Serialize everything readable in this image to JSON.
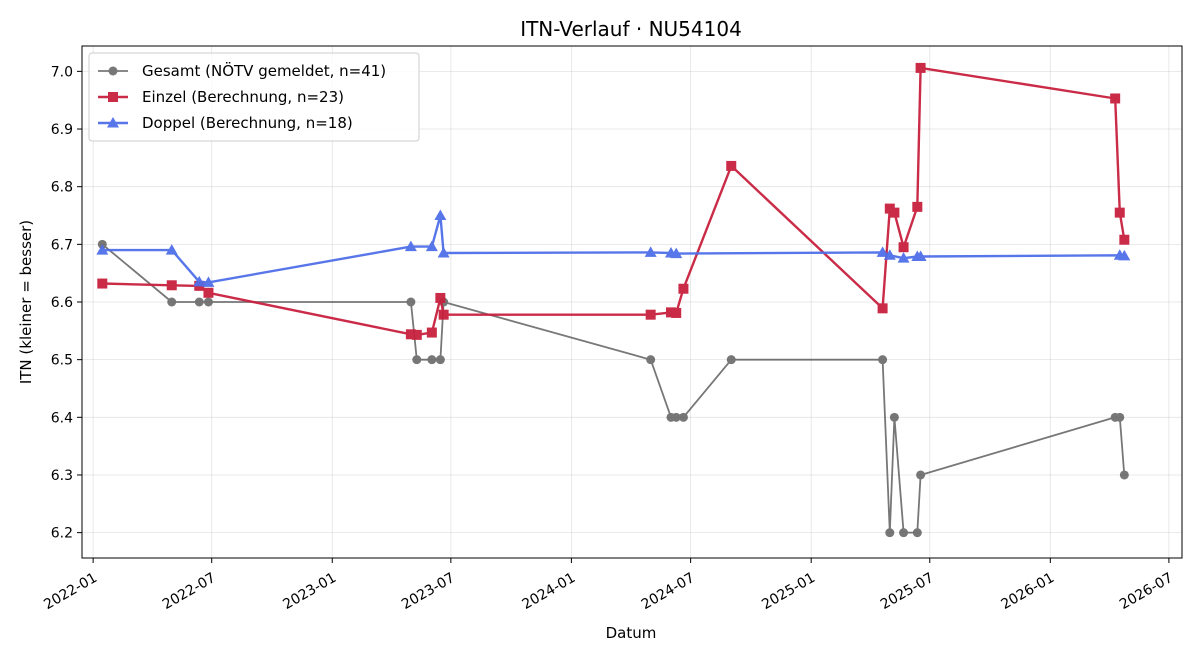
{
  "chart_data": {
    "type": "line",
    "title": "ITN-Verlauf · NU54104",
    "xlabel": "Datum",
    "ylabel": "ITN  (kleiner = besser)",
    "x_axis_type": "date",
    "xlim": [
      "2021-12-15",
      "2026-07-21"
    ],
    "ylim": [
      6.156,
      7.044
    ],
    "grid": true,
    "legend_position": "top-left",
    "x_ticks": [
      "2022-01-01",
      "2022-07-01",
      "2023-01-01",
      "2023-07-01",
      "2024-01-01",
      "2024-07-01",
      "2025-01-01",
      "2025-07-01",
      "2026-01-01",
      "2026-07-01"
    ],
    "x_tick_labels": [
      "2022-01",
      "2022-07",
      "2023-01",
      "2023-07",
      "2024-01",
      "2024-07",
      "2025-01",
      "2025-07",
      "2026-01",
      "2026-07"
    ],
    "y_ticks": [
      6.2,
      6.3,
      6.4,
      6.5,
      6.6,
      6.7,
      6.8,
      6.9,
      7.0
    ],
    "y_tick_labels": [
      "6.2",
      "6.3",
      "6.4",
      "6.5",
      "6.6",
      "6.7",
      "6.8",
      "6.9",
      "7.0"
    ],
    "series": [
      {
        "name": "Gesamt (NÖTV gemeldet, n=41)",
        "color": "#444444",
        "marker": "circle",
        "points": [
          [
            "2022-01-15",
            6.7
          ],
          [
            "2022-05-01",
            6.6
          ],
          [
            "2022-06-12",
            6.6
          ],
          [
            "2022-06-26",
            6.6
          ],
          [
            "2023-05-01",
            6.6
          ],
          [
            "2023-05-10",
            6.5
          ],
          [
            "2023-06-02",
            6.5
          ],
          [
            "2023-06-15",
            6.5
          ],
          [
            "2023-06-20",
            6.6
          ],
          [
            "2024-05-01",
            6.5
          ],
          [
            "2024-06-01",
            6.4
          ],
          [
            "2024-06-09",
            6.4
          ],
          [
            "2024-06-20",
            6.4
          ],
          [
            "2024-09-01",
            6.5
          ],
          [
            "2025-04-20",
            6.5
          ],
          [
            "2025-05-01",
            6.2
          ],
          [
            "2025-05-08",
            6.4
          ],
          [
            "2025-05-22",
            6.2
          ],
          [
            "2025-06-12",
            6.2
          ],
          [
            "2025-06-17",
            6.3
          ],
          [
            "2026-04-10",
            6.4
          ],
          [
            "2026-04-17",
            6.4
          ],
          [
            "2026-04-24",
            6.3
          ]
        ]
      },
      {
        "name": "Einzel (Berechnung, n=23)",
        "color": "#c8203e",
        "marker": "square",
        "points": [
          [
            "2022-01-15",
            6.632
          ],
          [
            "2022-05-01",
            6.629
          ],
          [
            "2022-06-12",
            6.628
          ],
          [
            "2022-06-26",
            6.616
          ],
          [
            "2023-05-01",
            6.544
          ],
          [
            "2023-05-10",
            6.543
          ],
          [
            "2023-06-02",
            6.547
          ],
          [
            "2023-06-15",
            6.607
          ],
          [
            "2023-06-20",
            6.578
          ],
          [
            "2024-05-01",
            6.578
          ],
          [
            "2024-06-01",
            6.582
          ],
          [
            "2024-06-09",
            6.581
          ],
          [
            "2024-06-20",
            6.623
          ],
          [
            "2024-09-01",
            6.836
          ],
          [
            "2025-04-20",
            6.589
          ],
          [
            "2025-05-01",
            6.762
          ],
          [
            "2025-05-08",
            6.755
          ],
          [
            "2025-05-22",
            6.695
          ],
          [
            "2025-06-12",
            6.765
          ],
          [
            "2025-06-17",
            7.006
          ],
          [
            "2026-04-10",
            6.953
          ],
          [
            "2026-04-17",
            6.755
          ],
          [
            "2026-04-24",
            6.708
          ]
        ]
      },
      {
        "name": "Doppel (Berechnung, n=18)",
        "color": "#4f6fe8",
        "marker": "triangle",
        "points": [
          [
            "2022-01-15",
            6.69
          ],
          [
            "2022-05-01",
            6.69
          ],
          [
            "2022-06-12",
            6.635
          ],
          [
            "2022-06-26",
            6.634
          ],
          [
            "2023-05-01",
            6.696
          ],
          [
            "2023-06-02",
            6.696
          ],
          [
            "2023-06-15",
            6.75
          ],
          [
            "2023-06-20",
            6.685
          ],
          [
            "2024-05-01",
            6.686
          ],
          [
            "2024-06-01",
            6.685
          ],
          [
            "2024-06-09",
            6.684
          ],
          [
            "2025-04-20",
            6.686
          ],
          [
            "2025-05-01",
            6.681
          ],
          [
            "2025-05-22",
            6.676
          ],
          [
            "2025-06-12",
            6.679
          ],
          [
            "2025-06-17",
            6.679
          ],
          [
            "2026-04-17",
            6.681
          ],
          [
            "2026-04-24",
            6.68
          ]
        ]
      }
    ]
  }
}
